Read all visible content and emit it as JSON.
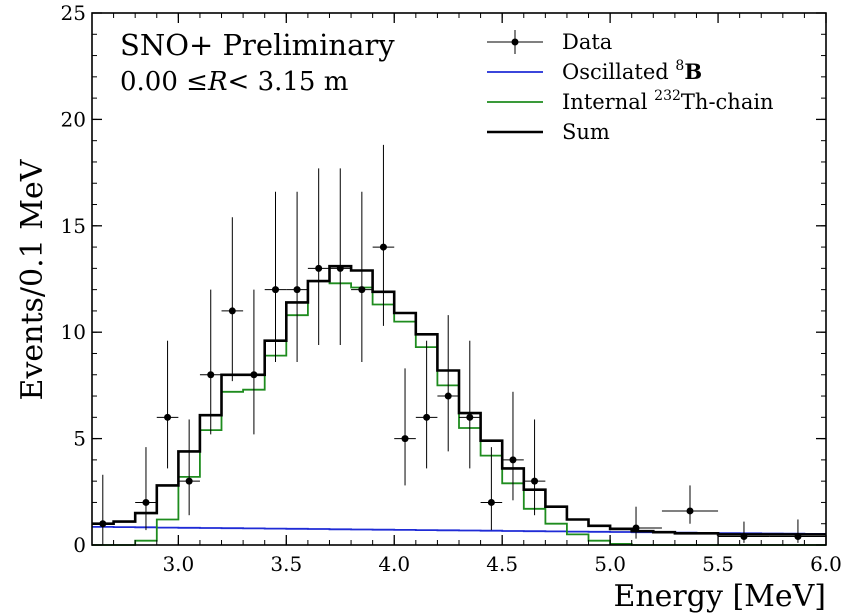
{
  "chart_data": {
    "type": "histogram",
    "xlabel": "Energy [MeV]",
    "ylabel": "Events/0.1 MeV",
    "xlim": [
      2.6,
      6.0
    ],
    "ylim": [
      0,
      25
    ],
    "xticks": [
      "3.0",
      "3.5",
      "4.0",
      "4.5",
      "5.0",
      "5.5",
      "6.0"
    ],
    "yticks": [
      "0",
      "5",
      "10",
      "15",
      "20",
      "25"
    ],
    "annotations": {
      "line1": "SNO+ Preliminary",
      "line2_prefix": "0.00 ≤",
      "line2_var": "R",
      "line2_suffix": "< 3.15 m"
    },
    "legend": {
      "position": "top-right",
      "entries": [
        {
          "key": "data",
          "label": "Data",
          "sup": "",
          "suffix": "",
          "color": "#000000",
          "style": "errorbar"
        },
        {
          "key": "b8",
          "label": "Oscillated ",
          "sup": "8",
          "suffix": "B",
          "color": "#1f2bd6",
          "style": "line"
        },
        {
          "key": "th",
          "label": "Internal ",
          "sup": "232",
          "suffix": "Th-chain",
          "color": "#1e8c1e",
          "style": "line"
        },
        {
          "key": "sum",
          "label": "Sum",
          "sup": "",
          "suffix": "",
          "color": "#000000",
          "style": "line"
        }
      ]
    },
    "bin_width": 0.1,
    "bin_edges_start": 2.6,
    "series": [
      {
        "key": "sum",
        "values": [
          1.0,
          1.1,
          1.5,
          2.8,
          4.4,
          6.1,
          8.0,
          8.0,
          9.6,
          11.4,
          12.4,
          13.1,
          12.9,
          11.9,
          10.9,
          9.9,
          8.2,
          6.2,
          4.9,
          3.6,
          2.6,
          1.8,
          1.2,
          0.9,
          0.75,
          0.65,
          0.6,
          0.55,
          0.55,
          0.5,
          0.5,
          0.5,
          0.5,
          0.5
        ]
      },
      {
        "key": "th",
        "values": [
          0.0,
          0.0,
          0.2,
          1.2,
          3.2,
          5.4,
          7.2,
          7.3,
          8.9,
          10.8,
          12.4,
          12.3,
          12.1,
          11.3,
          10.5,
          9.3,
          7.5,
          5.5,
          4.2,
          2.9,
          1.7,
          1.0,
          0.5,
          0.2,
          0.05,
          0,
          0,
          0,
          0,
          0,
          0,
          0,
          0,
          0
        ]
      },
      {
        "key": "b8",
        "values": [
          0.85,
          0.84,
          0.83,
          0.82,
          0.81,
          0.8,
          0.79,
          0.78,
          0.77,
          0.76,
          0.75,
          0.74,
          0.73,
          0.72,
          0.71,
          0.7,
          0.69,
          0.68,
          0.67,
          0.66,
          0.65,
          0.64,
          0.63,
          0.62,
          0.61,
          0.6,
          0.59,
          0.58,
          0.57,
          0.56,
          0.55,
          0.54,
          0.53,
          0.52
        ]
      }
    ],
    "data_points": [
      {
        "x": 2.65,
        "y": 1,
        "yerr": [
          1,
          2.3
        ],
        "xerr": 0.05
      },
      {
        "x": 2.85,
        "y": 2,
        "yerr": [
          1.3,
          2.6
        ],
        "xerr": 0.05
      },
      {
        "x": 2.95,
        "y": 6,
        "yerr": [
          2.4,
          3.6
        ],
        "xerr": 0.05
      },
      {
        "x": 3.05,
        "y": 3,
        "yerr": [
          1.6,
          2.9
        ],
        "xerr": 0.05
      },
      {
        "x": 3.15,
        "y": 8,
        "yerr": [
          2.8,
          4.0
        ],
        "xerr": 0.05
      },
      {
        "x": 3.25,
        "y": 11,
        "yerr": [
          3.3,
          4.4
        ],
        "xerr": 0.05
      },
      {
        "x": 3.35,
        "y": 8,
        "yerr": [
          2.8,
          4.0
        ],
        "xerr": 0.05
      },
      {
        "x": 3.45,
        "y": 12,
        "yerr": [
          3.4,
          4.6
        ],
        "xerr": 0.05
      },
      {
        "x": 3.55,
        "y": 12,
        "yerr": [
          3.4,
          4.6
        ],
        "xerr": 0.05
      },
      {
        "x": 3.65,
        "y": 13,
        "yerr": [
          3.6,
          4.7
        ],
        "xerr": 0.05
      },
      {
        "x": 3.75,
        "y": 13,
        "yerr": [
          3.6,
          4.7
        ],
        "xerr": 0.05
      },
      {
        "x": 3.85,
        "y": 12,
        "yerr": [
          3.4,
          4.6
        ],
        "xerr": 0.05
      },
      {
        "x": 3.95,
        "y": 14,
        "yerr": [
          3.7,
          4.8
        ],
        "xerr": 0.05
      },
      {
        "x": 4.05,
        "y": 5,
        "yerr": [
          2.2,
          3.3
        ],
        "xerr": 0.05
      },
      {
        "x": 4.15,
        "y": 6,
        "yerr": [
          2.4,
          3.6
        ],
        "xerr": 0.05
      },
      {
        "x": 4.25,
        "y": 7,
        "yerr": [
          2.6,
          3.8
        ],
        "xerr": 0.05
      },
      {
        "x": 4.35,
        "y": 6,
        "yerr": [
          2.4,
          3.6
        ],
        "xerr": 0.05
      },
      {
        "x": 4.45,
        "y": 2,
        "yerr": [
          1.3,
          2.6
        ],
        "xerr": 0.05
      },
      {
        "x": 4.55,
        "y": 4,
        "yerr": [
          1.9,
          3.2
        ],
        "xerr": 0.05
      },
      {
        "x": 4.65,
        "y": 3,
        "yerr": [
          1.6,
          2.9
        ],
        "xerr": 0.05
      },
      {
        "x": 5.12,
        "y": 0.8,
        "yerr": [
          0.5,
          1.0
        ],
        "xerr": 0.12
      },
      {
        "x": 5.37,
        "y": 1.6,
        "yerr": [
          0.6,
          1.2
        ],
        "xerr": 0.13
      },
      {
        "x": 5.62,
        "y": 0.4,
        "yerr": [
          0.3,
          0.7
        ],
        "xerr": 0.12
      },
      {
        "x": 5.87,
        "y": 0.4,
        "yerr": [
          0.3,
          0.8
        ],
        "xerr": 0.13
      }
    ]
  }
}
